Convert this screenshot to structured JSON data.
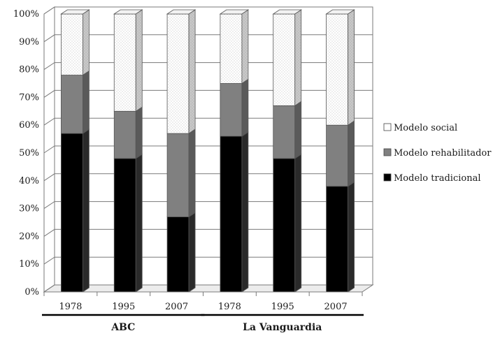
{
  "chart_data": {
    "type": "bar",
    "stacked": true,
    "three_d": true,
    "title": "",
    "xlabel": "",
    "ylabel": "",
    "ylim": [
      0,
      100
    ],
    "yticks": [
      "0%",
      "10%",
      "20%",
      "30%",
      "40%",
      "50%",
      "60%",
      "70%",
      "80%",
      "90%",
      "100%"
    ],
    "grid": true,
    "legend_position": "right",
    "categories": [
      "1978",
      "1995",
      "2007",
      "1978",
      "1995",
      "2007"
    ],
    "groups": [
      {
        "label": "ABC",
        "start": 0,
        "end": 2
      },
      {
        "label": "La Vanguardia",
        "start": 3,
        "end": 5
      }
    ],
    "series": [
      {
        "name": "Modelo tradicional",
        "color": "#000000",
        "pattern": "solid",
        "values": [
          57,
          48,
          27,
          56,
          48,
          38
        ]
      },
      {
        "name": "Modelo rehabilitador",
        "color": "#808080",
        "pattern": "solid",
        "values": [
          21,
          17,
          30,
          19,
          19,
          22
        ]
      },
      {
        "name": "Modelo social",
        "color": "#ffffff",
        "pattern": "dotted",
        "values": [
          22,
          35,
          43,
          25,
          33,
          40
        ]
      }
    ],
    "legend_order": [
      "Modelo social",
      "Modelo rehabilitador",
      "Modelo tradicional"
    ]
  }
}
